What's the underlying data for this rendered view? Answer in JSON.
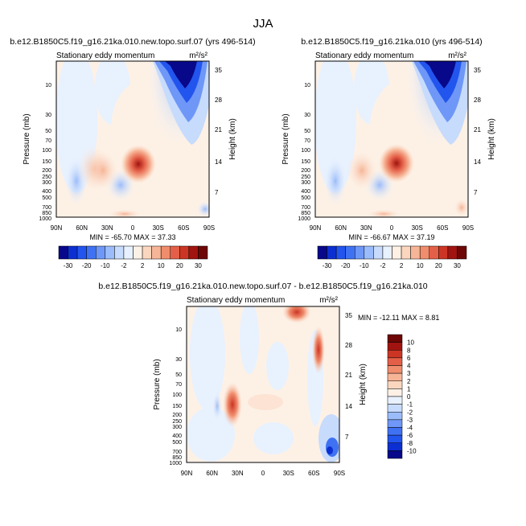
{
  "figure": {
    "title": "JJA"
  },
  "colors": {
    "contour_scale": [
      "#08088a",
      "#0c2fd1",
      "#2255ee",
      "#3f72f2",
      "#6e97f7",
      "#9bbcfa",
      "#c7dbfc",
      "#e8f1fe",
      "#fdf1e6",
      "#fbd6bf",
      "#f7b597",
      "#f08d6d",
      "#e45f47",
      "#cc3524",
      "#a1140f",
      "#6e0606"
    ]
  },
  "chart_data": [
    {
      "type": "heatmap",
      "title": "b.e12.B1850C5.f19_g16.21ka.010.new.topo.surf.07 (yrs 496-514)",
      "subtitle": "Stationary eddy momentum",
      "units": "m²/s²",
      "xlabel": "",
      "ylabel": "Pressure (mb)",
      "ylabel_right": "Height (km)",
      "x_ticks": [
        "90N",
        "60N",
        "30N",
        "0",
        "30S",
        "60S",
        "90S"
      ],
      "y_ticks": [
        "10",
        "30",
        "50",
        "70",
        "100",
        "150",
        "200",
        "250",
        "300",
        "400",
        "500",
        "700",
        "850",
        "1000"
      ],
      "y_log_scale": true,
      "height_ticks": [
        "35",
        "28",
        "21",
        "14",
        "7"
      ],
      "min_max": "MIN = -65.70   MAX =  37.33",
      "features": [
        {
          "lat": 5,
          "pressure": 150,
          "value": 37
        },
        {
          "lat": -55,
          "pressure": 10,
          "value": -65
        }
      ]
    },
    {
      "type": "heatmap",
      "title": "b.e12.B1850C5.f19_g16.21ka.010 (yrs 496-514)",
      "subtitle": "Stationary eddy momentum",
      "units": "m²/s²",
      "xlabel": "",
      "ylabel": "Pressure (mb)",
      "ylabel_right": "Height (km)",
      "x_ticks": [
        "90N",
        "60N",
        "30N",
        "0",
        "30S",
        "60S",
        "90S"
      ],
      "y_ticks": [
        "10",
        "30",
        "50",
        "70",
        "100",
        "150",
        "200",
        "250",
        "300",
        "400",
        "500",
        "700",
        "850",
        "1000"
      ],
      "y_log_scale": true,
      "height_ticks": [
        "35",
        "28",
        "21",
        "14",
        "7"
      ],
      "min_max": "MIN = -66.67   MAX =  37.19",
      "features": [
        {
          "lat": 5,
          "pressure": 150,
          "value": 37
        },
        {
          "lat": -55,
          "pressure": 10,
          "value": -66
        }
      ]
    },
    {
      "type": "heatmap",
      "title": "b.e12.B1850C5.f19_g16.21ka.010.new.topo.surf.07 - b.e12.B1850C5.f19_g16.21ka.010",
      "subtitle": "Stationary eddy momentum",
      "units": "m²/s²",
      "xlabel": "",
      "ylabel": "Pressure (mb)",
      "ylabel_right": "Height (km)",
      "x_ticks": [
        "90N",
        "60N",
        "30N",
        "0",
        "30S",
        "60S",
        "90S"
      ],
      "y_ticks": [
        "10",
        "30",
        "50",
        "70",
        "100",
        "150",
        "200",
        "250",
        "300",
        "400",
        "500",
        "700",
        "850",
        "1000"
      ],
      "y_log_scale": true,
      "height_ticks": [
        "35",
        "28",
        "21",
        "14",
        "7"
      ],
      "min_max": "MIN = -12.11   MAX =   8.81",
      "features": [
        {
          "lat": 35,
          "pressure": 150,
          "value": 8
        },
        {
          "lat": -45,
          "pressure": 5,
          "value": 8
        },
        {
          "lat": -80,
          "pressure": 700,
          "value": -12
        }
      ]
    }
  ],
  "colorbars": {
    "top": [
      "-30",
      "-20",
      "-10",
      "-2",
      "2",
      "10",
      "20",
      "30"
    ],
    "diff": [
      "10",
      "8",
      "6",
      "4",
      "3",
      "2",
      "1",
      "0",
      "-1",
      "-2",
      "-3",
      "-4",
      "-6",
      "-8",
      "-10"
    ]
  }
}
